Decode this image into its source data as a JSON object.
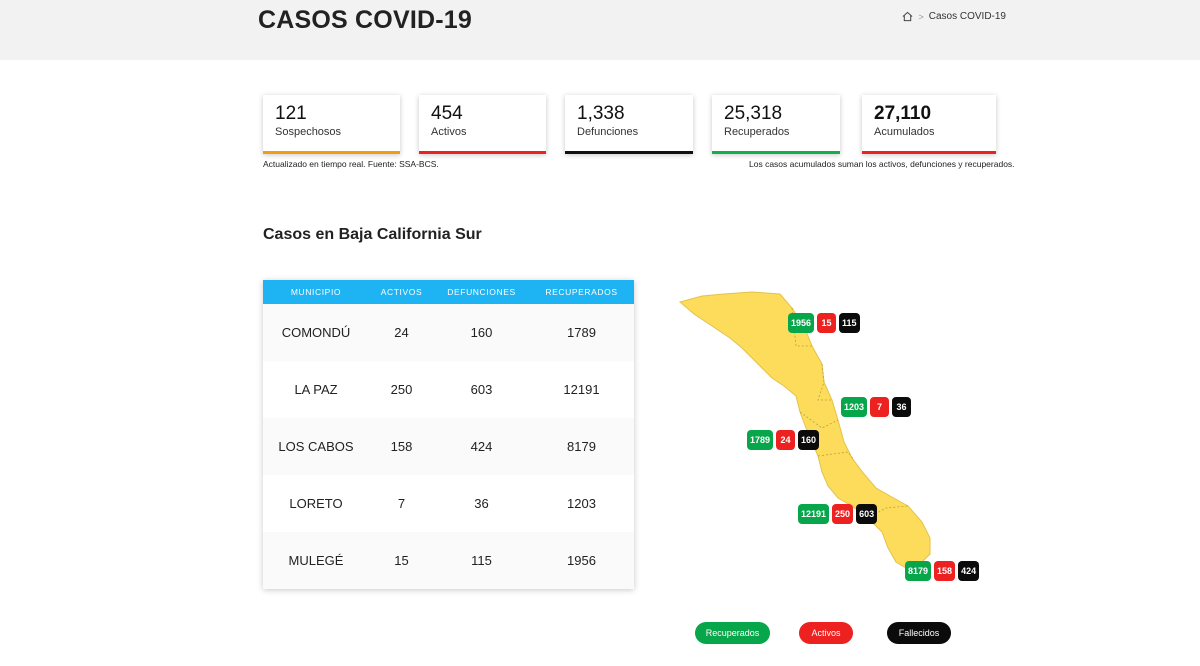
{
  "header": {
    "title": "CASOS COVID-19",
    "breadcrumb": {
      "home_icon": "home-icon",
      "current": "Casos COVID-19"
    }
  },
  "stats": [
    {
      "value": "121",
      "label": "Sospechosos",
      "color": "#f39c12"
    },
    {
      "value": "454",
      "label": "Activos",
      "color": "#ee2121"
    },
    {
      "value": "1,338",
      "label": "Defunciones",
      "color": "#111111"
    },
    {
      "value": "25,318",
      "label": "Recuperados",
      "color": "#10b04a"
    },
    {
      "value": "27,110",
      "label": "Acumulados",
      "color": "#ee2121"
    }
  ],
  "notes": {
    "left": "Actualizado en tiempo real. Fuente: SSA-BCS.",
    "right": "Los casos acumulados suman los activos, defunciones y recuperados."
  },
  "section": {
    "title": "Casos en Baja California Sur"
  },
  "table": {
    "headers": [
      "MUNICIPIO",
      "ACTIVOS",
      "DEFUNCIONES",
      "RECUPERADOS"
    ],
    "rows": [
      [
        "COMONDÚ",
        "24",
        "160",
        "1789"
      ],
      [
        "LA PAZ",
        "250",
        "603",
        "12191"
      ],
      [
        "LOS CABOS",
        "158",
        "424",
        "8179"
      ],
      [
        "LORETO",
        "7",
        "36",
        "1203"
      ],
      [
        "MULEGÉ",
        "15",
        "115",
        "1956"
      ]
    ]
  },
  "map": {
    "fill_color": "#fddc5c",
    "badges": [
      {
        "municipio": "MULEGÉ",
        "recuperados": "1956",
        "activos": "15",
        "fallecidos": "115"
      },
      {
        "municipio": "LORETO",
        "recuperados": "1203",
        "activos": "7",
        "fallecidos": "36"
      },
      {
        "municipio": "COMONDÚ",
        "recuperados": "1789",
        "activos": "24",
        "fallecidos": "160"
      },
      {
        "municipio": "LA PAZ",
        "recuperados": "12191",
        "activos": "250",
        "fallecidos": "603"
      },
      {
        "municipio": "LOS CABOS",
        "recuperados": "8179",
        "activos": "158",
        "fallecidos": "424"
      }
    ]
  },
  "legend": [
    {
      "label": "Recuperados",
      "color": "#07a64a"
    },
    {
      "label": "Activos",
      "color": "#ee2121"
    },
    {
      "label": "Fallecidos",
      "color": "#0b0b0b"
    }
  ]
}
